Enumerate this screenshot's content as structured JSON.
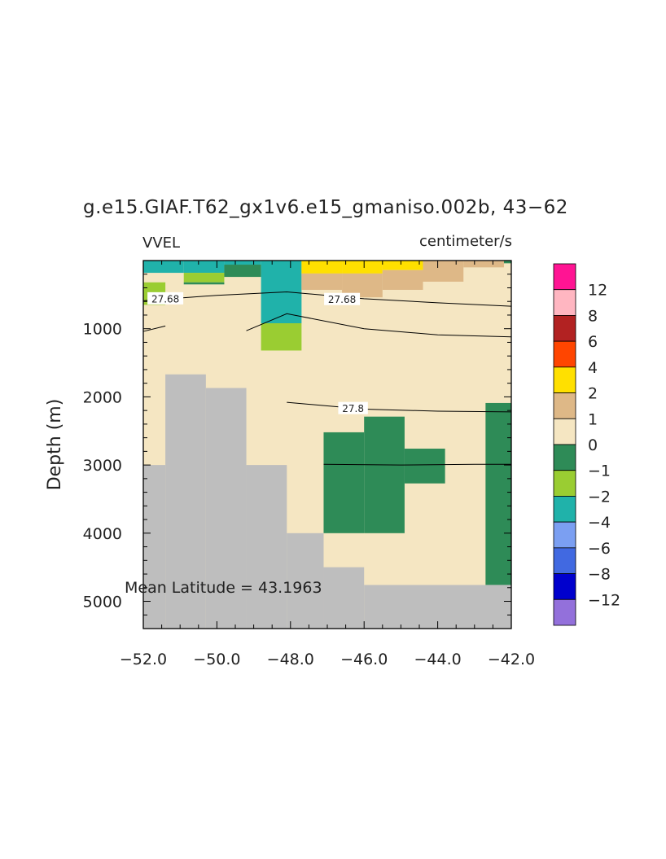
{
  "chart_data": {
    "type": "heatmap",
    "title": "g.e15.GIAF.T62_gx1v6.e15_gmaniso.002b, 43−62",
    "left_string": "VVEL",
    "right_string": "centimeter/s",
    "ylabel": "Depth (m)",
    "xlabel": "",
    "xlim": [
      -52.0,
      -42.0
    ],
    "ylim": [
      5400,
      0
    ],
    "x_tick_values": [
      -52,
      -50,
      -48,
      -46,
      -44,
      -42
    ],
    "x_tick_labels": [
      "−52.0",
      "−50.0",
      "−48.0",
      "−46.0",
      "−44.0",
      "−42.0"
    ],
    "y_tick_values": [
      1000,
      2000,
      3000,
      4000,
      5000
    ],
    "y_tick_labels": [
      "1000",
      "2000",
      "3000",
      "4000",
      "5000"
    ],
    "annotation": "Mean Latitude = 43.1963",
    "colorbar": {
      "colors": [
        "#9370db",
        "#0000cd",
        "#4169e1",
        "#7b9ff2",
        "#20b2aa",
        "#9acd32",
        "#2e8b57",
        "#f5e6c2",
        "#deb887",
        "#ffe000",
        "#ff4500",
        "#b22222",
        "#ffb6c1",
        "#ff1493"
      ],
      "labels": [
        "−12",
        "−8",
        "−6",
        "−4",
        "−2",
        "−1",
        "0",
        "1",
        "2",
        "4",
        "6",
        "8",
        "12"
      ]
    },
    "background_color": "#f5e6c2",
    "land_color": "#bebebe",
    "cells": [
      {
        "x0": -52.0,
        "x1": -50.9,
        "d0": 0,
        "d1": 180,
        "color": "#20b2aa"
      },
      {
        "x0": -50.9,
        "x1": -49.8,
        "d0": 0,
        "d1": 180,
        "color": "#20b2aa"
      },
      {
        "x0": -50.9,
        "x1": -49.8,
        "d0": 180,
        "d1": 320,
        "color": "#9acd32"
      },
      {
        "x0": -50.9,
        "x1": -49.8,
        "d0": 320,
        "d1": 350,
        "color": "#2e8b57"
      },
      {
        "x0": -52.0,
        "x1": -51.4,
        "d0": 320,
        "d1": 650,
        "color": "#9acd32"
      },
      {
        "x0": -49.8,
        "x1": -48.8,
        "d0": 0,
        "d1": 60,
        "color": "#20b2aa"
      },
      {
        "x0": -49.8,
        "x1": -48.8,
        "d0": 60,
        "d1": 240,
        "color": "#2e8b57"
      },
      {
        "x0": -48.8,
        "x1": -47.7,
        "d0": 0,
        "d1": 920,
        "color": "#20b2aa"
      },
      {
        "x0": -48.8,
        "x1": -47.7,
        "d0": 920,
        "d1": 1320,
        "color": "#9acd32"
      },
      {
        "x0": -47.7,
        "x1": -46.6,
        "d0": 0,
        "d1": 190,
        "color": "#ffe000"
      },
      {
        "x0": -46.6,
        "x1": -45.5,
        "d0": 0,
        "d1": 190,
        "color": "#ffe000"
      },
      {
        "x0": -45.5,
        "x1": -44.4,
        "d0": 0,
        "d1": 140,
        "color": "#ffe000"
      },
      {
        "x0": -47.7,
        "x1": -46.6,
        "d0": 190,
        "d1": 430,
        "color": "#deb887"
      },
      {
        "x0": -46.6,
        "x1": -45.5,
        "d0": 190,
        "d1": 430,
        "color": "#deb887"
      },
      {
        "x0": -46.6,
        "x1": -45.5,
        "d0": 430,
        "d1": 540,
        "color": "#deb887"
      },
      {
        "x0": -45.5,
        "x1": -44.4,
        "d0": 140,
        "d1": 430,
        "color": "#deb887"
      },
      {
        "x0": -44.4,
        "x1": -43.3,
        "d0": 0,
        "d1": 310,
        "color": "#deb887"
      },
      {
        "x0": -43.3,
        "x1": -42.2,
        "d0": 0,
        "d1": 100,
        "color": "#deb887"
      },
      {
        "x0": -42.2,
        "x1": -42.0,
        "d0": 0,
        "d1": 40,
        "color": "#2e8b57"
      },
      {
        "x0": -47.1,
        "x1": -46.0,
        "d0": 2520,
        "d1": 4000,
        "color": "#2e8b57"
      },
      {
        "x0": -46.0,
        "x1": -44.9,
        "d0": 2290,
        "d1": 4000,
        "color": "#2e8b57"
      },
      {
        "x0": -44.9,
        "x1": -43.8,
        "d0": 2760,
        "d1": 3270,
        "color": "#2e8b57"
      },
      {
        "x0": -42.7,
        "x1": -42.0,
        "d0": 2090,
        "d1": 4760,
        "color": "#2e8b57"
      },
      {
        "x0": -52.0,
        "x1": -51.4,
        "d0": 3000,
        "d1": 5400,
        "color": "#bebebe"
      },
      {
        "x0": -51.4,
        "x1": -50.3,
        "d0": 1670,
        "d1": 5400,
        "color": "#bebebe"
      },
      {
        "x0": -50.3,
        "x1": -49.2,
        "d0": 1870,
        "d1": 5400,
        "color": "#bebebe"
      },
      {
        "x0": -49.2,
        "x1": -48.1,
        "d0": 3000,
        "d1": 5400,
        "color": "#bebebe"
      },
      {
        "x0": -48.1,
        "x1": -47.1,
        "d0": 4000,
        "d1": 5400,
        "color": "#bebebe"
      },
      {
        "x0": -47.1,
        "x1": -46.0,
        "d0": 4500,
        "d1": 5400,
        "color": "#bebebe"
      },
      {
        "x0": -46.0,
        "x1": -42.0,
        "d0": 4760,
        "d1": 5400,
        "color": "#bebebe"
      }
    ],
    "contours": [
      {
        "label": "27.68",
        "label_at": [
          -51.4,
          560
        ],
        "points": [
          [
            -52.0,
            590
          ],
          [
            -50.0,
            510
          ],
          [
            -48.1,
            460
          ],
          [
            -46.0,
            560
          ],
          [
            -44.0,
            620
          ],
          [
            -42.0,
            670
          ]
        ]
      },
      {
        "label": "27.68",
        "label_at": [
          -46.6,
          570
        ],
        "points": []
      },
      {
        "label": "",
        "label_at": null,
        "points": [
          [
            -52.0,
            1040
          ],
          [
            -51.4,
            960
          ]
        ]
      },
      {
        "label": "",
        "label_at": null,
        "points": [
          [
            -49.2,
            1030
          ],
          [
            -48.1,
            780
          ],
          [
            -46.0,
            1000
          ],
          [
            -44.0,
            1090
          ],
          [
            -42.0,
            1120
          ]
        ]
      },
      {
        "label": "27.8",
        "label_at": [
          -46.3,
          2170
        ],
        "points": [
          [
            -48.1,
            2080
          ],
          [
            -46.0,
            2180
          ],
          [
            -44.0,
            2210
          ],
          [
            -42.0,
            2220
          ]
        ]
      },
      {
        "label": "",
        "label_at": null,
        "points": [
          [
            -47.1,
            2990
          ],
          [
            -45.0,
            3000
          ],
          [
            -43.0,
            2990
          ],
          [
            -42.0,
            2990
          ]
        ]
      }
    ]
  }
}
